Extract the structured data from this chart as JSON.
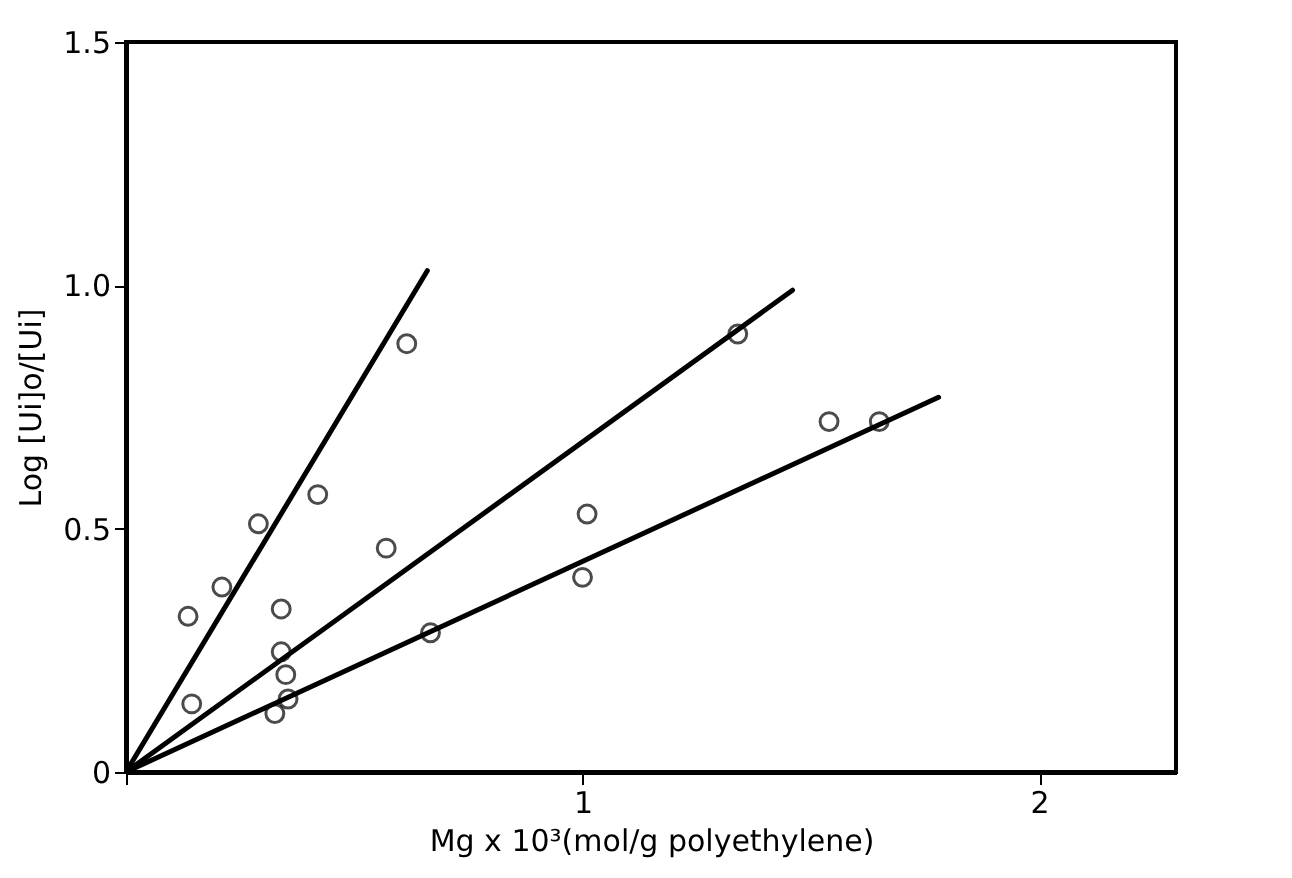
{
  "chart_data": {
    "type": "scatter",
    "xlabel": "Mg x 10³(mol/g polyethylene)",
    "ylabel": "Log [Ui]o/[Ui]",
    "xlim": [
      0,
      2.3
    ],
    "ylim": [
      0,
      1.5
    ],
    "xticks": [
      {
        "value": 0,
        "label": null
      },
      1,
      2
    ],
    "yticks": [
      0,
      0.5,
      {
        "value": 1,
        "label": "1.0"
      },
      1.5
    ],
    "marker": "circle",
    "line_style": "solid",
    "series": [
      {
        "color": "#000000",
        "x": [
          0.136,
          0.21,
          0.29,
          0.42,
          0.34
        ],
        "values": [
          0.32,
          0.38,
          0.51,
          0.57,
          0.335
        ]
      },
      {
        "color": "#000000",
        "x": [
          0.144,
          0.34,
          0.35,
          0.57,
          0.615,
          1.01,
          1.34
        ],
        "values": [
          0.14,
          0.247,
          0.2,
          0.46,
          0.88,
          0.53,
          0.9
        ]
      },
      {
        "color": "#000000",
        "x": [
          0.326,
          0.355,
          0.667,
          1.0,
          1.54,
          1.65
        ],
        "values": [
          0.12,
          0.15,
          0.286,
          0.4,
          0.72,
          0.72
        ]
      },
      {
        "type": "line",
        "marker": "none",
        "color": "#000000",
        "x": [
          0,
          0.66
        ],
        "values": [
          0,
          1.03
        ]
      },
      {
        "type": "line",
        "marker": "none",
        "color": "#000000",
        "x": [
          0,
          1.46
        ],
        "values": [
          0,
          0.99
        ]
      },
      {
        "type": "line",
        "marker": "none",
        "color": "#000000",
        "x": [
          0,
          1.78
        ],
        "values": [
          0,
          0.77
        ]
      }
    ]
  }
}
